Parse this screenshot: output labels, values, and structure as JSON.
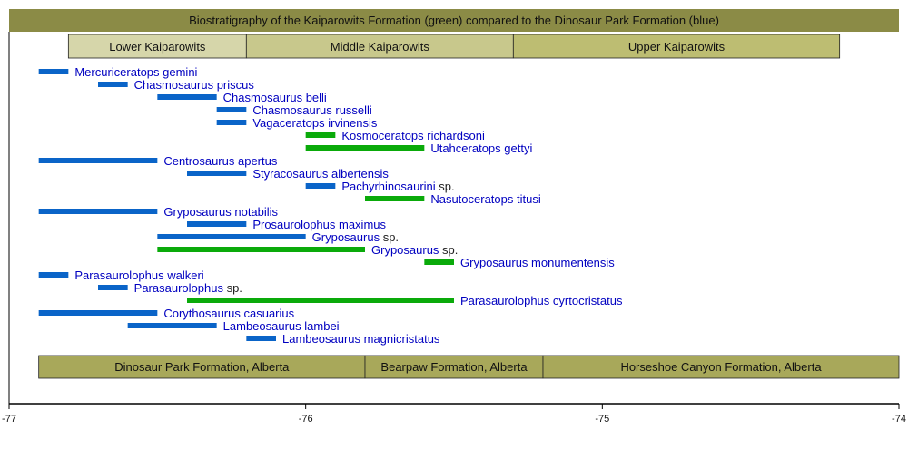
{
  "chart_data": {
    "type": "bar",
    "title": "Biostratigraphy of the Kaiparowits Formation (green) compared to the Dinosaur Park Formation (blue)",
    "xlim": [
      -77,
      -74
    ],
    "x_ticks": [
      "-77",
      "-76",
      "-75",
      "-74"
    ],
    "grid": false,
    "colors": {
      "title_band": "#8b8b46",
      "dinosaur_park": "#0a64c8",
      "kaiparowits": "#0aaa0a",
      "label": "#0000c0",
      "sp": "#222222",
      "bottom_band": "#a8a85a"
    },
    "top_units": [
      {
        "name": "Lower Kaiparowits",
        "start": -76.8,
        "end": -76.2,
        "color": "#d6d6aa"
      },
      {
        "name": "Middle Kaiparowits",
        "start": -76.2,
        "end": -75.3,
        "color": "#c8c88c"
      },
      {
        "name": "Upper Kaiparowits",
        "start": -75.3,
        "end": -74.2,
        "color": "#bdbd72"
      }
    ],
    "bottom_units": [
      {
        "name": "Dinosaur Park Formation, Alberta",
        "start": -76.9,
        "end": -75.8
      },
      {
        "name": "Bearpaw Formation, Alberta",
        "start": -75.8,
        "end": -75.2
      },
      {
        "name": "Horseshoe Canyon Formation, Alberta",
        "start": -75.2,
        "end": -74.0
      }
    ],
    "taxa": [
      {
        "name": "Mercuriceratops gemini",
        "suffix": "",
        "formation": "dinosaur_park",
        "start": -76.9,
        "end": -76.8
      },
      {
        "name": "Chasmosaurus priscus",
        "suffix": "",
        "formation": "dinosaur_park",
        "start": -76.7,
        "end": -76.6
      },
      {
        "name": "Chasmosaurus belli",
        "suffix": "",
        "formation": "dinosaur_park",
        "start": -76.5,
        "end": -76.3
      },
      {
        "name": "Chasmosaurus russelli",
        "suffix": "",
        "formation": "dinosaur_park",
        "start": -76.3,
        "end": -76.2
      },
      {
        "name": "Vagaceratops irvinensis",
        "suffix": "",
        "formation": "dinosaur_park",
        "start": -76.3,
        "end": -76.2
      },
      {
        "name": "Kosmoceratops richardsoni",
        "suffix": "",
        "formation": "kaiparowits",
        "start": -76.0,
        "end": -75.9
      },
      {
        "name": "Utahceratops gettyi",
        "suffix": "",
        "formation": "kaiparowits",
        "start": -76.0,
        "end": -75.6
      },
      {
        "name": "Centrosaurus apertus",
        "suffix": "",
        "formation": "dinosaur_park",
        "start": -76.9,
        "end": -76.5
      },
      {
        "name": "Styracosaurus albertensis",
        "suffix": "",
        "formation": "dinosaur_park",
        "start": -76.4,
        "end": -76.2
      },
      {
        "name": "Pachyrhinosaurini",
        "suffix": " sp.",
        "formation": "dinosaur_park",
        "start": -76.0,
        "end": -75.9
      },
      {
        "name": "Nasutoceratops titusi",
        "suffix": "",
        "formation": "kaiparowits",
        "start": -75.8,
        "end": -75.6
      },
      {
        "name": "Gryposaurus notabilis",
        "suffix": "",
        "formation": "dinosaur_park",
        "start": -76.9,
        "end": -76.5
      },
      {
        "name": "Prosaurolophus maximus",
        "suffix": "",
        "formation": "dinosaur_park",
        "start": -76.4,
        "end": -76.2
      },
      {
        "name": "Gryposaurus",
        "suffix": " sp.",
        "formation": "dinosaur_park",
        "start": -76.5,
        "end": -76.0
      },
      {
        "name": "Gryposaurus",
        "suffix": " sp.",
        "formation": "kaiparowits",
        "start": -76.5,
        "end": -75.8
      },
      {
        "name": "Gryposaurus monumentensis",
        "suffix": "",
        "formation": "kaiparowits",
        "start": -75.6,
        "end": -75.5
      },
      {
        "name": "Parasaurolophus walkeri",
        "suffix": "",
        "formation": "dinosaur_park",
        "start": -76.9,
        "end": -76.8
      },
      {
        "name": "Parasaurolophus",
        "suffix": " sp.",
        "formation": "dinosaur_park",
        "start": -76.7,
        "end": -76.6
      },
      {
        "name": "Parasaurolophus cyrtocristatus",
        "suffix": "",
        "formation": "kaiparowits",
        "start": -76.4,
        "end": -75.5
      },
      {
        "name": "Corythosaurus casuarius",
        "suffix": "",
        "formation": "dinosaur_park",
        "start": -76.9,
        "end": -76.5
      },
      {
        "name": "Lambeosaurus lambei",
        "suffix": "",
        "formation": "dinosaur_park",
        "start": -76.6,
        "end": -76.3
      },
      {
        "name": "Lambeosaurus magnicristatus",
        "suffix": "",
        "formation": "dinosaur_park",
        "start": -76.2,
        "end": -76.1
      }
    ]
  }
}
